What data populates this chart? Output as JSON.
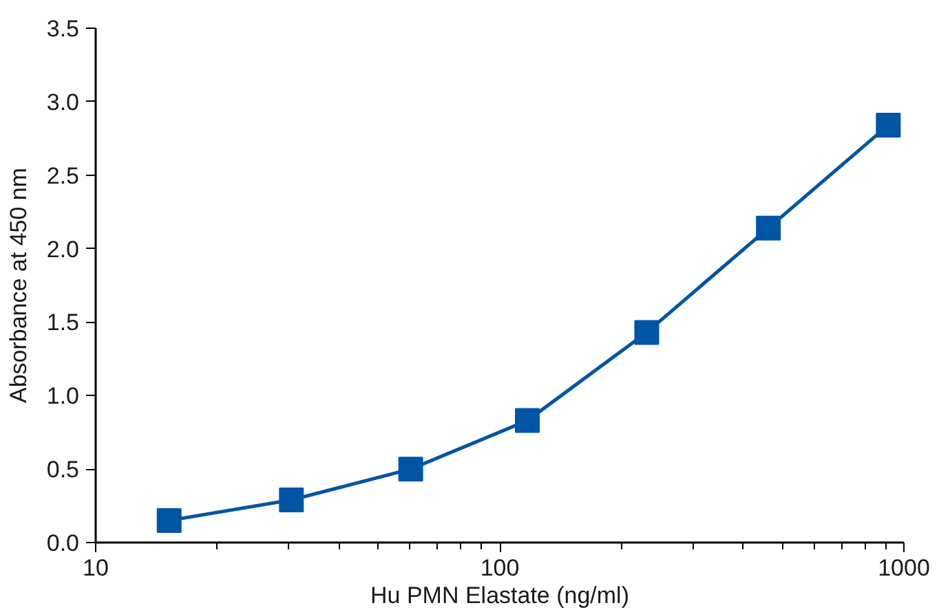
{
  "chart_data": {
    "type": "line",
    "xlabel": "Hu PMN Elastate (ng/ml)",
    "ylabel": "Absorbance at 450 nm",
    "log": "x",
    "xlim": [
      10,
      1000
    ],
    "xticks": [
      10,
      100,
      1000
    ],
    "ylim": [
      0,
      3.5
    ],
    "yticks": [
      {
        "value": 0,
        "label": "0.0"
      },
      0.5,
      {
        "value": 1,
        "label": "1.0"
      },
      1.5,
      {
        "value": 2,
        "label": "2.0"
      },
      2.5,
      {
        "value": 3,
        "label": "3.0"
      },
      3.5
    ],
    "grid": false,
    "marker": "square",
    "line_style": "solid",
    "series": [
      {
        "color": "#0055a5",
        "x": [
          15.2,
          30.5,
          60.2,
          117,
          231,
          462,
          915
        ],
        "values": [
          0.15,
          0.29,
          0.5,
          0.83,
          1.43,
          2.14,
          2.84
        ]
      }
    ]
  }
}
